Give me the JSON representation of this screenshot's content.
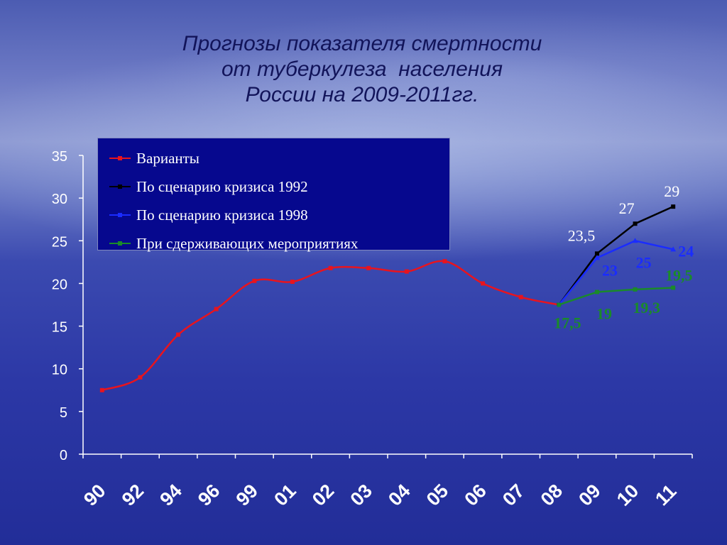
{
  "title_lines": [
    "Прогнозы показателя смертности",
    "от туберкулеза  населения",
    "России на 2009-2011гг."
  ],
  "colors": {
    "red": "#e8141e",
    "black": "#000000",
    "blue": "#1a2cff",
    "green": "#1a8a2a",
    "axis": "#ffffff",
    "tick_text": "#ffffff"
  },
  "chart_data": {
    "type": "line",
    "categories": [
      "90",
      "92",
      "94",
      "96",
      "99",
      "01",
      "02",
      "03",
      "04",
      "05",
      "06",
      "07",
      "08",
      "09",
      "10",
      "11"
    ],
    "ylim": [
      0,
      35
    ],
    "yticks": [
      "0",
      "5",
      "10",
      "15",
      "20",
      "25",
      "30",
      "35"
    ],
    "grid": false,
    "legend_position": "top-left",
    "series": [
      {
        "name": "Варианты",
        "color_key": "red",
        "values": [
          7.5,
          9.0,
          14.0,
          17.0,
          20.3,
          20.2,
          21.8,
          21.8,
          21.4,
          22.6,
          20.0,
          18.4,
          17.5,
          null,
          null,
          null
        ]
      },
      {
        "name": "По сценарию кризиса 1992",
        "color_key": "black",
        "values": [
          null,
          null,
          null,
          null,
          null,
          null,
          null,
          null,
          null,
          null,
          null,
          null,
          17.5,
          23.5,
          27.0,
          29.0
        ],
        "labels": [
          null,
          null,
          null,
          null,
          null,
          null,
          null,
          null,
          null,
          null,
          null,
          null,
          null,
          "23,5",
          "27",
          "29"
        ]
      },
      {
        "name": "По сценарию кризиса 1998",
        "color_key": "blue",
        "values": [
          null,
          null,
          null,
          null,
          null,
          null,
          null,
          null,
          null,
          null,
          null,
          null,
          17.5,
          23.0,
          25.0,
          24.0
        ],
        "labels": [
          null,
          null,
          null,
          null,
          null,
          null,
          null,
          null,
          null,
          null,
          null,
          null,
          null,
          "23",
          "25",
          "24"
        ]
      },
      {
        "name": "При сдерживающих мероприятиях",
        "color_key": "green",
        "values": [
          null,
          null,
          null,
          null,
          null,
          null,
          null,
          null,
          null,
          null,
          null,
          null,
          17.5,
          19.0,
          19.3,
          19.5
        ],
        "labels": [
          null,
          null,
          null,
          null,
          null,
          null,
          null,
          null,
          null,
          null,
          null,
          null,
          "17,5",
          "19",
          "19,3",
          "19,5"
        ]
      }
    ]
  }
}
